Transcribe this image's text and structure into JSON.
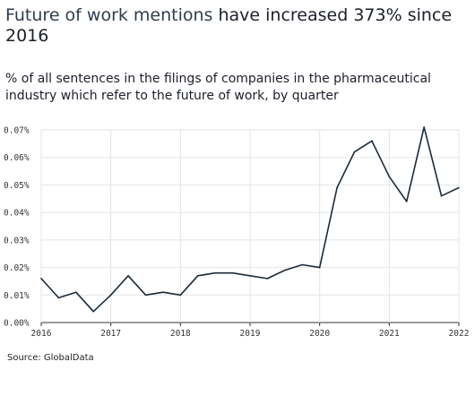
{
  "header": {
    "title_highlight": "Future of work mentions",
    "title_rest": " have increased 373% since 2016",
    "subtitle": "% of all sentences in the filings of companies in the pharmaceutical industry which refer to the future of work, by quarter"
  },
  "source": "Source: GlobalData",
  "chart_data": {
    "type": "line",
    "x": [
      2016.0,
      2016.25,
      2016.5,
      2016.75,
      2017.0,
      2017.25,
      2017.5,
      2017.75,
      2018.0,
      2018.25,
      2018.5,
      2018.75,
      2019.0,
      2019.25,
      2019.5,
      2019.75,
      2020.0,
      2020.25,
      2020.5,
      2020.75,
      2021.0,
      2021.25,
      2021.5,
      2021.75,
      2022.0
    ],
    "series": [
      {
        "values": [
          0.016,
          0.009,
          0.011,
          0.004,
          0.01,
          0.017,
          0.01,
          0.011,
          0.01,
          0.017,
          0.018,
          0.018,
          0.017,
          0.016,
          0.019,
          0.021,
          0.02,
          0.049,
          0.062,
          0.066,
          0.053,
          0.044,
          0.071,
          0.046,
          0.049
        ],
        "color": "#1b2a3a"
      }
    ],
    "xticks": [
      "2016",
      "2017",
      "2018",
      "2019",
      "2020",
      "2021",
      "2022"
    ],
    "yticks": [
      "0.00%",
      "0.01%",
      "0.02%",
      "0.03%",
      "0.04%",
      "0.05%",
      "0.06%",
      "0.07%"
    ],
    "xlim": [
      2016,
      2022
    ],
    "ylim": [
      0,
      0.07
    ],
    "grid": true,
    "xlabel": "",
    "ylabel": ""
  }
}
